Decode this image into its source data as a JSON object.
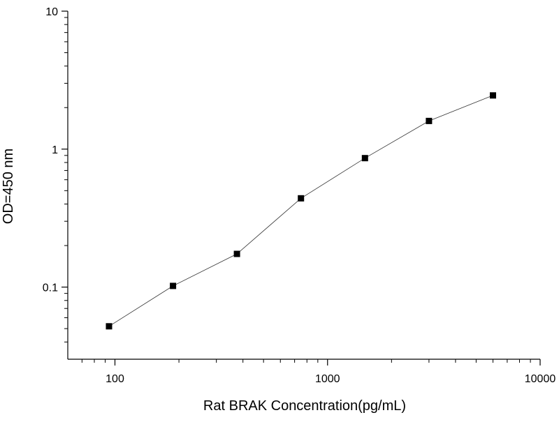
{
  "chart_data": {
    "type": "line",
    "title": "",
    "xlabel": "Rat BRAK Concentration(pg/mL)",
    "ylabel": "OD=450 nm",
    "xscale": "log",
    "yscale": "log",
    "xlim": [
      60,
      10000
    ],
    "ylim": [
      0.03,
      10
    ],
    "x_ticks": [
      {
        "value": 100,
        "label": "100"
      },
      {
        "value": 1000,
        "label": "1000"
      },
      {
        "value": 10000,
        "label": "10000"
      }
    ],
    "y_ticks": [
      {
        "value": 0.1,
        "label": "0.1"
      },
      {
        "value": 1,
        "label": "1"
      },
      {
        "value": 10,
        "label": "10"
      }
    ],
    "grid": false,
    "legend": "none",
    "colors": {
      "marker": "#000000",
      "line": "#333333",
      "axis": "#000000"
    },
    "series": [
      {
        "marker": "square",
        "x": [
          93.75,
          187.5,
          375,
          750,
          1500,
          3000,
          6000
        ],
        "y": [
          0.052,
          0.102,
          0.174,
          0.44,
          0.86,
          1.6,
          2.45
        ]
      }
    ]
  }
}
